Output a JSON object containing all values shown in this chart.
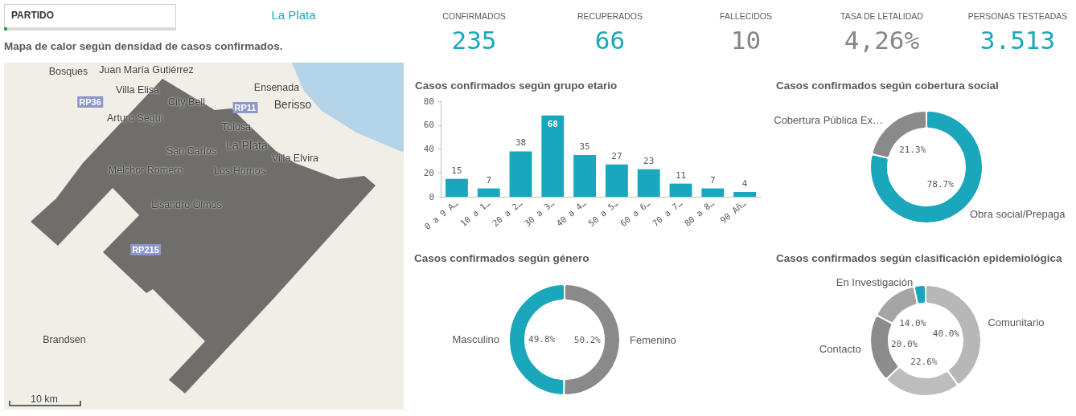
{
  "chart_data": [
    {
      "type": "other",
      "title": "PARTIDO",
      "annotations": [
        "La Plata"
      ]
    },
    {
      "type": "other",
      "categories": [
        "CONFIRMADOS",
        "RECUPERADOS",
        "FALLECIDOS",
        "TASA DE LETALIDAD",
        "PERSONAS TESTEADAS"
      ],
      "value_labels": [
        "235",
        "66",
        "10",
        "4,26%",
        "3.513"
      ],
      "colors": [
        "#1aa7bc",
        "#1aa7bc",
        "#858585",
        "#858585",
        "#1aa7bc"
      ]
    },
    {
      "type": "other",
      "title": "Mapa de calor según densidad de casos confirmados.",
      "annotations": [
        "Bosques",
        "Juan María Gutiérrez",
        "Villa Elisa",
        "Ensenada",
        "RP36",
        "City Bell",
        "Berisso",
        "RP11",
        "Arturo Seguí",
        "Tolosa",
        "La Plata",
        "San Carlos",
        "Villa Elvira",
        "Melchor Romero",
        "Los Hornos",
        "Lisandro Olmos",
        "RP215",
        "Brandsen",
        "10 km"
      ]
    },
    {
      "type": "bar",
      "title": "Casos confirmados según grupo etario",
      "categories": [
        "0 a 9 A…",
        "10 a 1…",
        "20 a 2…",
        "30 a 3…",
        "40 a 4…",
        "50 a 5…",
        "60 a 6…",
        "70 a 7…",
        "80 a 8…",
        "90 Añ…"
      ],
      "values": [
        15,
        7,
        38,
        68,
        35,
        27,
        23,
        11,
        7,
        4
      ],
      "color": "#18a7bd",
      "ylim": [
        0,
        80
      ],
      "yticks": [
        0,
        20,
        40,
        60,
        80
      ],
      "data_labels": true
    },
    {
      "type": "donut",
      "title": "Casos confirmados según cobertura social",
      "categories": [
        "Obra social/Prepaga",
        "Cobertura Pública Ex…"
      ],
      "values": [
        78.7,
        21.3
      ],
      "value_labels": [
        "78.7%",
        "21.3%"
      ],
      "colors": [
        "#1aa7bc",
        "#8a8a8a"
      ]
    },
    {
      "type": "donut",
      "title": "Casos confirmados según género",
      "categories": [
        "Femenino",
        "Masculino"
      ],
      "values": [
        50.2,
        49.8
      ],
      "value_labels": [
        "50.2%",
        "49.8%"
      ],
      "colors": [
        "#8a8a8a",
        "#1aa7bc"
      ]
    },
    {
      "type": "donut",
      "title": "Casos confirmados según clasificación epidemiológica",
      "categories": [
        "Comunitario",
        null,
        "Contacto",
        null,
        "En Investigación"
      ],
      "values": [
        40.0,
        22.6,
        20.0,
        14.0,
        3.4
      ],
      "value_labels": [
        "40.0%",
        "22.6%",
        "20.0%",
        "14.0%",
        null
      ],
      "colors": [
        "#b7b7b7",
        "#bdbdbd",
        "#8c8c8c",
        "#a5a5a5",
        "#1aa7bc"
      ]
    }
  ]
}
